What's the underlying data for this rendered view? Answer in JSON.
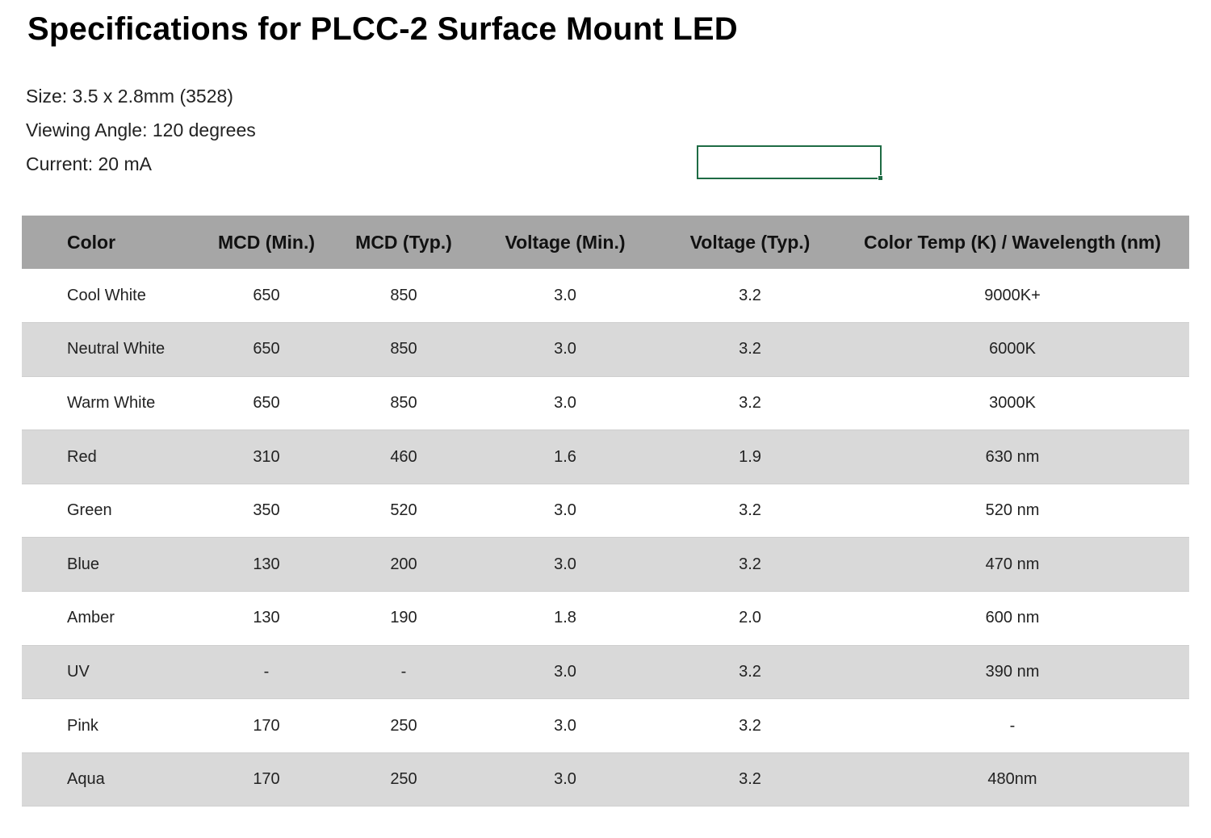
{
  "title": "Specifications for PLCC-2 Surface Mount LED",
  "specs": {
    "size": "Size: 3.5 x 2.8mm (3528)",
    "viewing_angle": "Viewing Angle: 120 degrees",
    "current": "Current: 20 mA"
  },
  "table": {
    "headers": [
      "Color",
      "MCD (Min.)",
      "MCD (Typ.)",
      "Voltage (Min.)",
      "Voltage (Typ.)",
      "Color Temp (K) / Wavelength (nm)"
    ],
    "rows": [
      [
        "Cool White",
        "650",
        "850",
        "3.0",
        "3.2",
        "9000K+"
      ],
      [
        "Neutral White",
        "650",
        "850",
        "3.0",
        "3.2",
        "6000K"
      ],
      [
        "Warm White",
        "650",
        "850",
        "3.0",
        "3.2",
        "3000K"
      ],
      [
        "Red",
        "310",
        "460",
        "1.6",
        "1.9",
        "630 nm"
      ],
      [
        "Green",
        "350",
        "520",
        "3.0",
        "3.2",
        "520 nm"
      ],
      [
        "Blue",
        "130",
        "200",
        "3.0",
        "3.2",
        "470 nm"
      ],
      [
        "Amber",
        "130",
        "190",
        "1.8",
        "2.0",
        "600 nm"
      ],
      [
        "UV",
        "-",
        "-",
        "3.0",
        "3.2",
        "390 nm"
      ],
      [
        "Pink",
        "170",
        "250",
        "3.0",
        "3.2",
        "-"
      ],
      [
        "Aqua",
        "170",
        "250",
        "3.0",
        "3.2",
        "480nm"
      ]
    ]
  },
  "colors": {
    "header_bg": "#a6a6a6",
    "alt_row_bg": "#d9d9d9",
    "selection_border": "#1e6b44"
  }
}
